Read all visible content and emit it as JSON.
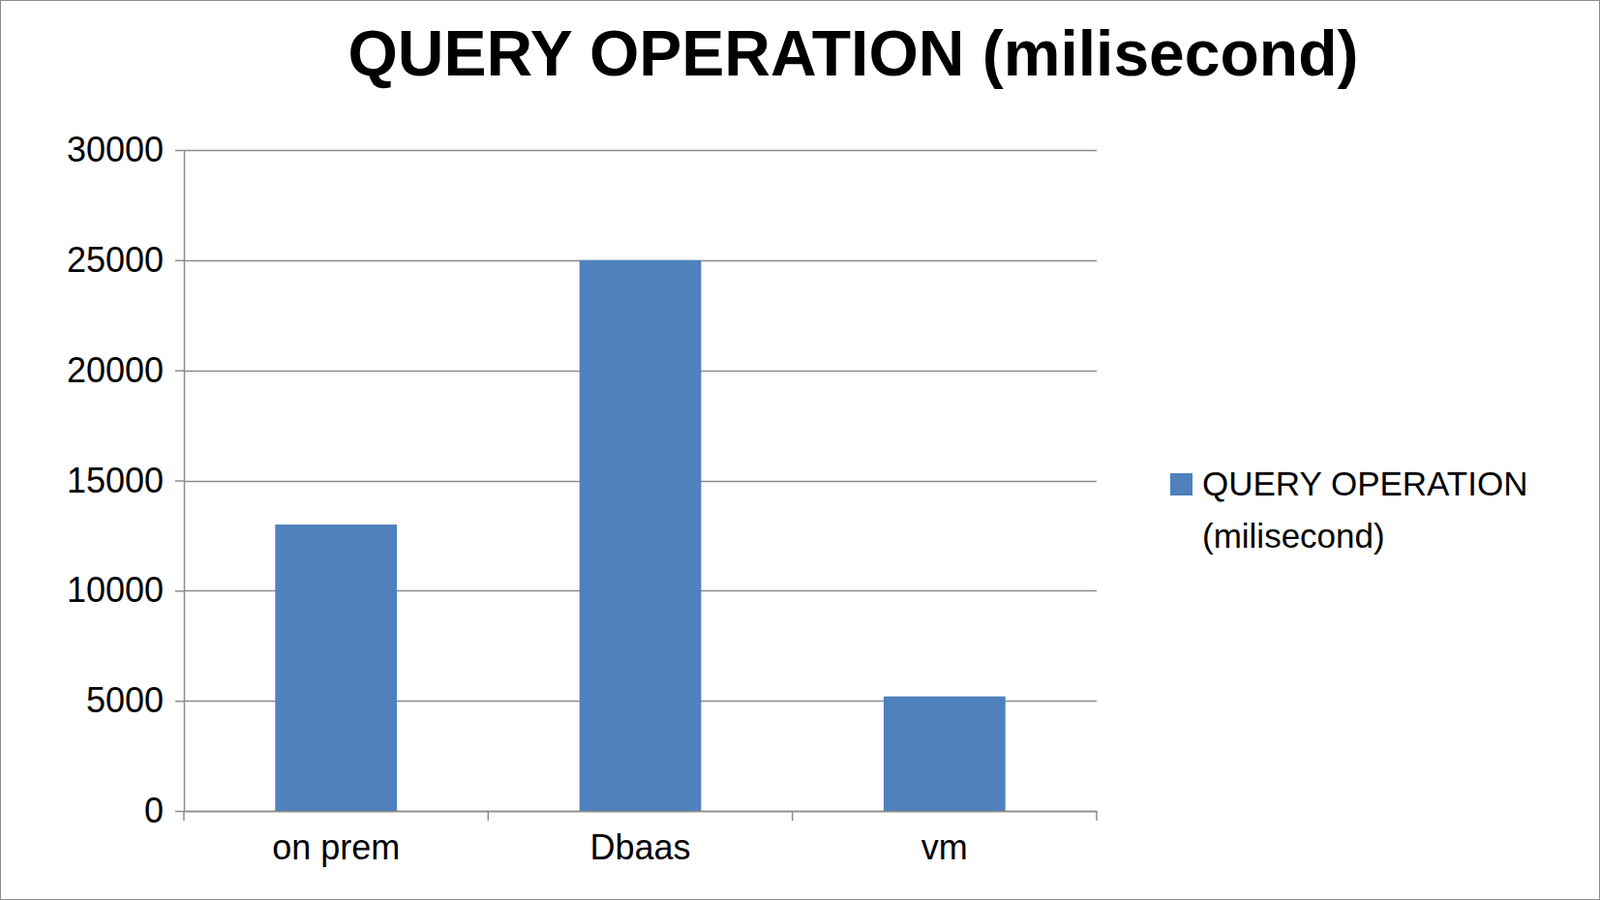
{
  "chart_data": {
    "type": "bar",
    "title": "QUERY OPERATION (milisecond)",
    "categories": [
      "on prem",
      "Dbaas",
      "vm"
    ],
    "series": [
      {
        "name": "QUERY OPERATION (milisecond)",
        "color": "#4f81bd",
        "values": [
          13000,
          25000,
          5200
        ]
      }
    ],
    "ylim": [
      0,
      30000
    ],
    "yticks": [
      0,
      5000,
      10000,
      15000,
      20000,
      25000,
      30000
    ],
    "grid": true,
    "legend": "right"
  }
}
